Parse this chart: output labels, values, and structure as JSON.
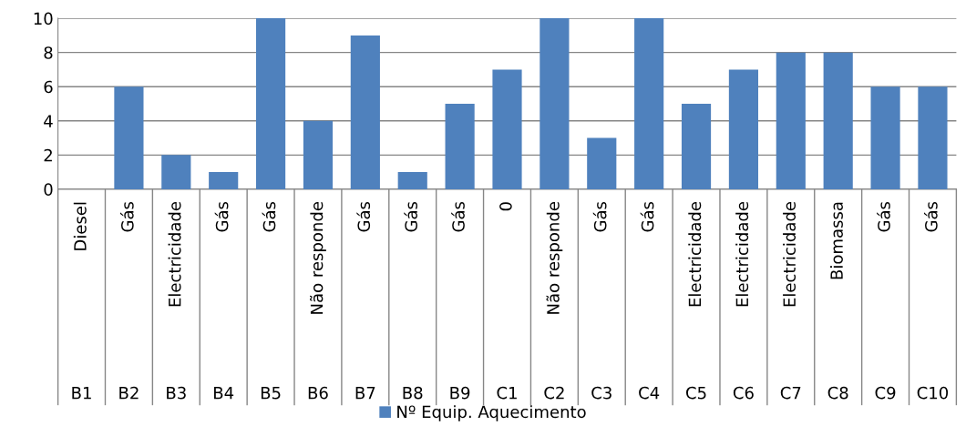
{
  "chart_data": {
    "type": "bar",
    "categories": [
      "Diesel\nB1",
      "Gás\nB2",
      "Electricidade\nB3",
      "Gás\nB4",
      "Gás\nB5",
      "Não responde\nB6",
      "Gás\nB7",
      "Gás\nB8",
      "Gás\nB9",
      "0\nC1",
      "Não responde\nC2",
      "Gás\nC3",
      "Gás\nC4",
      "Electricidade\nC5",
      "Electricidade\nC6",
      "Electricidade\nC7",
      "Biomassa\nC8",
      "Gás\nC9",
      "Gás\nC10"
    ],
    "series": [
      {
        "name": "Nº Equip. Aquecimento",
        "color": "#4f81bd",
        "values": [
          0,
          6,
          2,
          1,
          10,
          4,
          9,
          1,
          5,
          7,
          10,
          3,
          10,
          5,
          7,
          8,
          8,
          6,
          6
        ]
      }
    ],
    "ylim": [
      0,
      10
    ],
    "yticks": [
      0,
      2,
      4,
      6,
      8,
      10
    ],
    "grid": "y",
    "legend": "bottom"
  }
}
